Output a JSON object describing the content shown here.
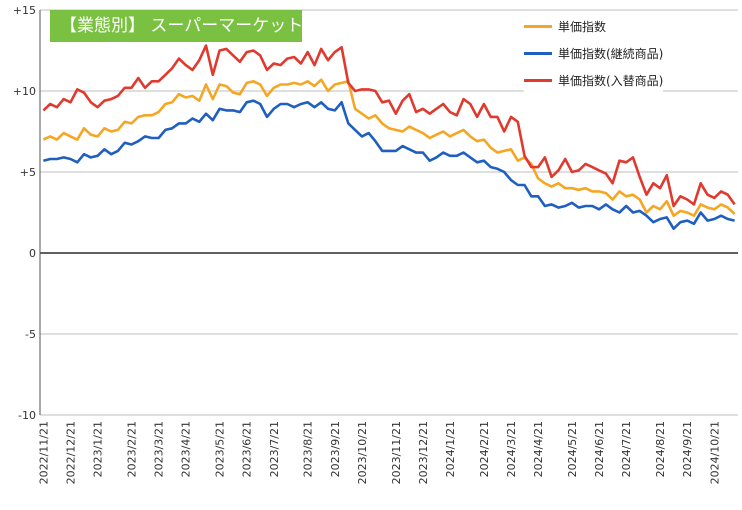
{
  "chart_data": {
    "type": "line",
    "title": "【業態別】 スーパーマーケット",
    "ylim": [
      -10,
      15
    ],
    "yticks": [
      {
        "v": 15,
        "label": "+15"
      },
      {
        "v": 10,
        "label": "+10"
      },
      {
        "v": 5,
        "label": "+5"
      },
      {
        "v": 0,
        "label": "0"
      },
      {
        "v": -5,
        "label": "-5"
      },
      {
        "v": -10,
        "label": "-10"
      }
    ],
    "x_start_date": "2022/11/21",
    "x_interval_days": 7,
    "x_ticks": [
      "2022/11/21",
      "2022/12/21",
      "2023/1/21",
      "2023/2/21",
      "2023/3/21",
      "2023/4/21",
      "2023/5/21",
      "2023/6/21",
      "2023/7/21",
      "2023/8/21",
      "2023/9/21",
      "2023/10/21",
      "2023/11/21",
      "2023/12/21",
      "2024/1/21",
      "2024/2/21",
      "2024/3/21",
      "2024/4/21",
      "2024/5/21",
      "2024/6/21",
      "2024/7/21",
      "2024/8/21",
      "2024/9/21",
      "2024/10/21"
    ],
    "x_tick_index": [
      0,
      4,
      8,
      13,
      17,
      21,
      26,
      30,
      34,
      39,
      43,
      47,
      52,
      56,
      60,
      65,
      69,
      73,
      78,
      82,
      86,
      91,
      95,
      99
    ],
    "grid": true,
    "legend": "top-right",
    "series": [
      {
        "name": "単価指数",
        "color": "#f5a623",
        "values": [
          7.0,
          7.2,
          7.0,
          7.4,
          7.2,
          7.0,
          7.7,
          7.3,
          7.2,
          7.7,
          7.5,
          7.6,
          8.1,
          8.0,
          8.4,
          8.5,
          8.5,
          8.7,
          9.2,
          9.3,
          9.8,
          9.6,
          9.7,
          9.4,
          10.4,
          9.5,
          10.4,
          10.3,
          9.9,
          9.8,
          10.5,
          10.6,
          10.4,
          9.7,
          10.2,
          10.4,
          10.4,
          10.5,
          10.4,
          10.6,
          10.3,
          10.7,
          10.0,
          10.4,
          10.5,
          10.6,
          8.9,
          8.6,
          8.3,
          8.5,
          8.0,
          7.7,
          7.6,
          7.5,
          7.8,
          7.6,
          7.4,
          7.1,
          7.3,
          7.5,
          7.2,
          7.4,
          7.6,
          7.2,
          6.9,
          7.0,
          6.5,
          6.2,
          6.3,
          6.4,
          5.7,
          5.9,
          5.5,
          4.6,
          4.3,
          4.1,
          4.3,
          4.0,
          4.0,
          3.9,
          4.0,
          3.8,
          3.8,
          3.7,
          3.3,
          3.8,
          3.5,
          3.6,
          3.3,
          2.5,
          2.9,
          2.7,
          3.2,
          2.3,
          2.6,
          2.5,
          2.3,
          3.0,
          2.8,
          2.7,
          3.0,
          2.8,
          2.4
        ]
      },
      {
        "name": "単価指数(継続商品)",
        "color": "#1f5fbf",
        "values": [
          5.7,
          5.8,
          5.8,
          5.9,
          5.8,
          5.6,
          6.1,
          5.9,
          6.0,
          6.4,
          6.1,
          6.3,
          6.8,
          6.7,
          6.9,
          7.2,
          7.1,
          7.1,
          7.6,
          7.7,
          8.0,
          8.0,
          8.3,
          8.1,
          8.6,
          8.2,
          8.9,
          8.8,
          8.8,
          8.7,
          9.3,
          9.4,
          9.2,
          8.4,
          8.9,
          9.2,
          9.2,
          9.0,
          9.2,
          9.3,
          9.0,
          9.3,
          8.9,
          8.8,
          9.3,
          8.0,
          7.6,
          7.2,
          7.4,
          6.9,
          6.3,
          6.3,
          6.3,
          6.6,
          6.4,
          6.2,
          6.2,
          5.7,
          5.9,
          6.2,
          6.0,
          6.0,
          6.2,
          5.9,
          5.6,
          5.7,
          5.3,
          5.2,
          5.0,
          4.5,
          4.2,
          4.2,
          3.5,
          3.5,
          2.9,
          3.0,
          2.8,
          2.9,
          3.1,
          2.8,
          2.9,
          2.9,
          2.7,
          3.0,
          2.7,
          2.5,
          2.9,
          2.5,
          2.6,
          2.3,
          1.9,
          2.1,
          2.2,
          1.5,
          1.9,
          2.0,
          1.8,
          2.5,
          2.0,
          2.1,
          2.3,
          2.1,
          2.0
        ]
      },
      {
        "name": "単価指数(入替商品)",
        "color": "#e03a2f",
        "values": [
          8.8,
          9.2,
          9.0,
          9.5,
          9.3,
          10.1,
          9.9,
          9.3,
          9.0,
          9.4,
          9.5,
          9.7,
          10.2,
          10.2,
          10.8,
          10.2,
          10.6,
          10.6,
          11.0,
          11.4,
          12.0,
          11.6,
          11.3,
          11.9,
          12.8,
          11.0,
          12.5,
          12.6,
          12.2,
          11.8,
          12.4,
          12.5,
          12.2,
          11.3,
          11.7,
          11.6,
          12.0,
          12.1,
          11.7,
          12.4,
          11.6,
          12.6,
          11.9,
          12.4,
          12.7,
          10.5,
          10.0,
          10.1,
          10.1,
          10.0,
          9.3,
          9.4,
          8.6,
          9.4,
          9.8,
          8.7,
          8.9,
          8.6,
          8.9,
          9.2,
          8.7,
          8.5,
          9.5,
          9.2,
          8.4,
          9.2,
          8.4,
          8.4,
          7.5,
          8.4,
          8.1,
          6.0,
          5.3,
          5.3,
          5.9,
          4.7,
          5.1,
          5.8,
          5.0,
          5.1,
          5.5,
          5.3,
          5.1,
          4.9,
          4.3,
          5.7,
          5.6,
          5.9,
          4.7,
          3.6,
          4.3,
          4.0,
          4.8,
          2.9,
          3.5,
          3.3,
          3.0,
          4.3,
          3.6,
          3.4,
          3.8,
          3.6,
          3.0
        ]
      }
    ]
  }
}
